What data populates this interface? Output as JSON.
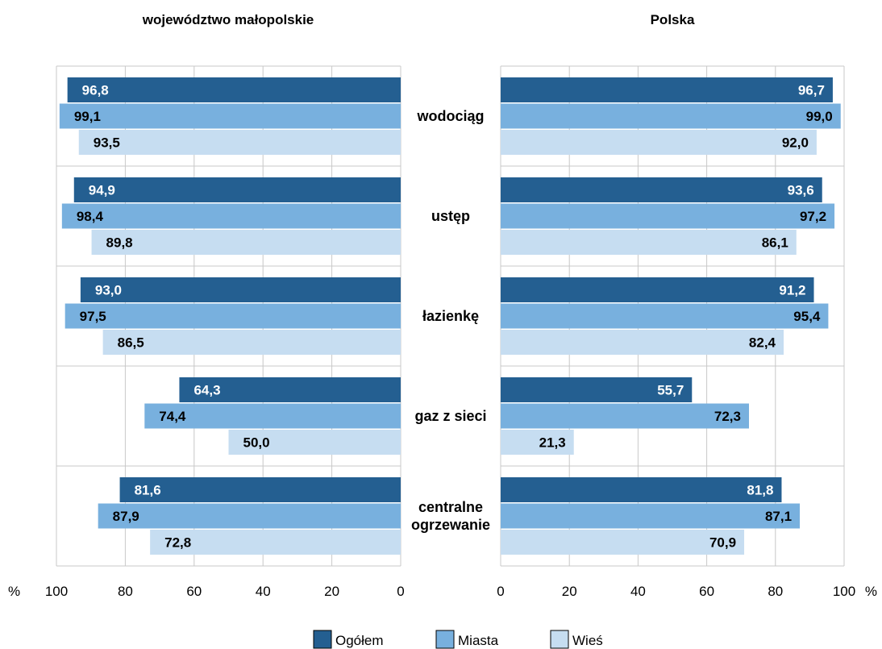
{
  "chart_data": {
    "type": "bar",
    "orientation": "horizontal-butterfly",
    "categories": [
      "wodociąg",
      "ustęp",
      "łazienkę",
      "gaz z sieci",
      "centralne ogrzewanie"
    ],
    "category_lines": [
      [
        "wodociąg"
      ],
      [
        "ustęp"
      ],
      [
        "łazienkę"
      ],
      [
        "gaz z sieci"
      ],
      [
        "centralne",
        "ogrzewanie"
      ]
    ],
    "unit": "%",
    "xlim": [
      0,
      100
    ],
    "ticks": [
      0,
      20,
      40,
      60,
      80,
      100
    ],
    "grid": true,
    "legend_position": "bottom",
    "series_names": [
      "Ogółem",
      "Miasta",
      "Wieś"
    ],
    "series_colors": [
      "#245f91",
      "#78b0de",
      "#c6ddf1"
    ],
    "panels": [
      {
        "title": "województwo małopolskie",
        "direction": "right-to-left",
        "series": [
          {
            "name": "Ogółem",
            "values": [
              96.8,
              94.9,
              93.0,
              64.3,
              81.6
            ],
            "labels": [
              "96,8",
              "94,9",
              "93,0",
              "64,3",
              "81,6"
            ]
          },
          {
            "name": "Miasta",
            "values": [
              99.1,
              98.4,
              97.5,
              74.4,
              87.9
            ],
            "labels": [
              "99,1",
              "98,4",
              "97,5",
              "74,4",
              "87,9"
            ]
          },
          {
            "name": "Wieś",
            "values": [
              93.5,
              89.8,
              86.5,
              50.0,
              72.8
            ],
            "labels": [
              "93,5",
              "89,8",
              "86,5",
              "50,0",
              "72,8"
            ]
          }
        ]
      },
      {
        "title": "Polska",
        "direction": "left-to-right",
        "series": [
          {
            "name": "Ogółem",
            "values": [
              96.7,
              93.6,
              91.2,
              55.7,
              81.8
            ],
            "labels": [
              "96,7",
              "93,6",
              "91,2",
              "55,7",
              "81,8"
            ]
          },
          {
            "name": "Miasta",
            "values": [
              99.0,
              97.2,
              95.4,
              72.3,
              87.1
            ],
            "labels": [
              "99,0",
              "97,2",
              "95,4",
              "72,3",
              "87,1"
            ]
          },
          {
            "name": "Wieś",
            "values": [
              92.0,
              86.1,
              82.4,
              21.3,
              70.9
            ],
            "labels": [
              "92,0",
              "86,1",
              "82,4",
              "21,3",
              "70,9"
            ]
          }
        ]
      }
    ]
  }
}
